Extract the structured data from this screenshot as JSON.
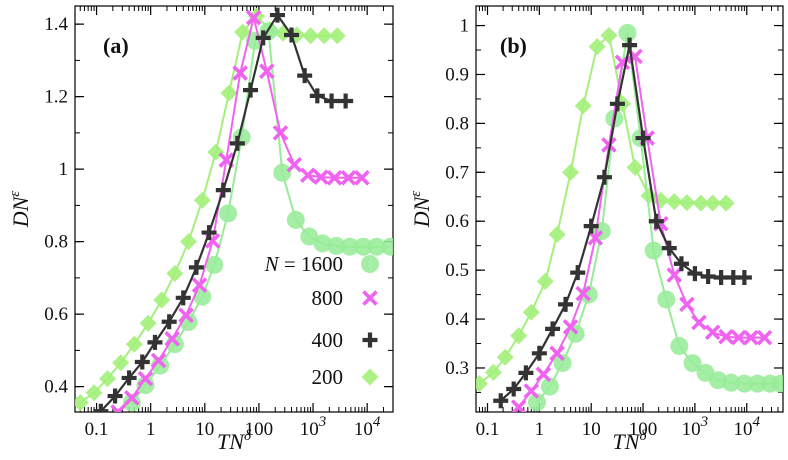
{
  "chart_data": [
    {
      "panel": "(a)",
      "type": "line",
      "xscale": "log",
      "xlabel": "TN",
      "xlabel_sup": "δ",
      "ylabel": "DN",
      "ylabel_sup": "ε",
      "xlim": [
        0.04,
        30000
      ],
      "ylim": [
        0.33,
        1.45
      ],
      "xticks": [
        {
          "value": 0.1,
          "label": "0.1"
        },
        {
          "value": 1,
          "label": "1"
        },
        {
          "value": 10,
          "label": "10"
        },
        {
          "value": 100,
          "label": "100"
        },
        {
          "value": 1000,
          "label": "10",
          "sup": "3"
        },
        {
          "value": 10000,
          "label": "10",
          "sup": "4"
        }
      ],
      "yticks": [
        {
          "value": 0.4,
          "label": "0.4"
        },
        {
          "value": 0.6,
          "label": "0.6"
        },
        {
          "value": 0.8,
          "label": "0.8"
        },
        {
          "value": 1.0,
          "label": "1"
        },
        {
          "value": 1.2,
          "label": "1.2"
        },
        {
          "value": 1.4,
          "label": "1.4"
        }
      ],
      "legend": {
        "placement": "bottom-right",
        "prefix": "N = "
      },
      "series": [
        {
          "name": "1600",
          "marker": "circle",
          "color": "#98ec98",
          "x": [
            0.45,
            0.8,
            1.5,
            2.8,
            5,
            9,
            15,
            27,
            48,
            85,
            150,
            270,
            480,
            850,
            1500,
            2700,
            4800,
            8500,
            15000,
            27000
          ],
          "y": [
            0.356,
            0.404,
            0.458,
            0.517,
            0.578,
            0.648,
            0.736,
            0.878,
            1.088,
            1.354,
            1.38,
            0.99,
            0.86,
            0.814,
            0.795,
            0.788,
            0.786,
            0.786,
            0.786,
            0.786
          ]
        },
        {
          "name": "800",
          "marker": "x",
          "color": "#f062f0",
          "x": [
            0.25,
            0.45,
            0.8,
            1.4,
            2.5,
            4.5,
            8,
            14,
            25,
            45,
            80,
            140,
            250,
            450,
            800,
            1400,
            2500,
            4500,
            8000
          ],
          "y": [
            0.33,
            0.369,
            0.422,
            0.472,
            0.532,
            0.597,
            0.68,
            0.802,
            1.025,
            1.265,
            1.418,
            1.27,
            1.1,
            1.012,
            0.983,
            0.978,
            0.976,
            0.976,
            0.976
          ]
        },
        {
          "name": "400",
          "marker": "plus",
          "color": "#333333",
          "x": [
            0.12,
            0.22,
            0.4,
            0.7,
            1.2,
            2.2,
            4,
            7,
            12,
            22,
            40,
            70,
            120,
            220,
            400,
            700,
            1200,
            2200,
            4000
          ],
          "y": [
            0.332,
            0.374,
            0.424,
            0.468,
            0.522,
            0.579,
            0.645,
            0.729,
            0.825,
            0.942,
            1.071,
            1.218,
            1.362,
            1.425,
            1.37,
            1.258,
            1.202,
            1.188,
            1.188
          ]
        },
        {
          "name": "200",
          "marker": "diamond",
          "color": "#a4f07c",
          "x": [
            0.05,
            0.09,
            0.16,
            0.28,
            0.5,
            0.9,
            1.6,
            2.8,
            5,
            9,
            16,
            28,
            50,
            90,
            160,
            280,
            500,
            900,
            1600,
            2800
          ],
          "y": [
            0.356,
            0.383,
            0.422,
            0.466,
            0.517,
            0.575,
            0.639,
            0.712,
            0.8,
            0.914,
            1.047,
            1.21,
            1.378,
            1.422,
            1.385,
            1.375,
            1.37,
            1.368,
            1.368,
            1.368
          ]
        }
      ]
    },
    {
      "panel": "(b)",
      "type": "line",
      "xscale": "log",
      "xlabel": "TN",
      "xlabel_sup": "δ",
      "ylabel": "DN",
      "ylabel_sup": "ε",
      "xlim": [
        0.06,
        50000
      ],
      "ylim": [
        0.21,
        1.04
      ],
      "xticks": [
        {
          "value": 0.1,
          "label": "0.1"
        },
        {
          "value": 1,
          "label": "1"
        },
        {
          "value": 10,
          "label": "10"
        },
        {
          "value": 100,
          "label": "100"
        },
        {
          "value": 1000,
          "label": "10",
          "sup": "3"
        },
        {
          "value": 10000,
          "label": "10",
          "sup": "4"
        }
      ],
      "yticks": [
        {
          "value": 0.3,
          "label": "0.3"
        },
        {
          "value": 0.4,
          "label": "0.4"
        },
        {
          "value": 0.5,
          "label": "0.5"
        },
        {
          "value": 0.6,
          "label": "0.6"
        },
        {
          "value": 0.7,
          "label": "0.7"
        },
        {
          "value": 0.8,
          "label": "0.8"
        },
        {
          "value": 0.9,
          "label": "0.9"
        },
        {
          "value": 1.0,
          "label": "1"
        }
      ],
      "series": [
        {
          "name": "1600",
          "marker": "circle",
          "color": "#98ec98",
          "x": [
            0.9,
            1.6,
            2.8,
            5,
            9,
            16,
            28,
            50,
            90,
            160,
            280,
            500,
            900,
            1600,
            2800,
            5000,
            9000,
            16000,
            28000,
            45000
          ],
          "y": [
            0.23,
            0.262,
            0.31,
            0.37,
            0.45,
            0.58,
            0.81,
            0.985,
            0.77,
            0.54,
            0.44,
            0.345,
            0.31,
            0.29,
            0.275,
            0.27,
            0.268,
            0.268,
            0.268,
            0.268
          ]
        },
        {
          "name": "800",
          "marker": "x",
          "color": "#f062f0",
          "x": [
            0.4,
            0.7,
            1.2,
            2.2,
            4,
            7,
            12,
            22,
            40,
            70,
            120,
            220,
            400,
            700,
            1200,
            2200,
            4000,
            7000,
            12000,
            22000
          ],
          "y": [
            0.22,
            0.253,
            0.287,
            0.33,
            0.384,
            0.452,
            0.566,
            0.756,
            0.925,
            0.937,
            0.77,
            0.595,
            0.49,
            0.43,
            0.393,
            0.373,
            0.364,
            0.362,
            0.362,
            0.362
          ]
        },
        {
          "name": "400",
          "marker": "plus",
          "color": "#333333",
          "x": [
            0.18,
            0.32,
            0.55,
            1,
            1.8,
            3.2,
            5.5,
            10,
            18,
            32,
            55,
            100,
            180,
            320,
            550,
            1000,
            1800,
            3200,
            5500,
            9000
          ],
          "y": [
            0.233,
            0.257,
            0.29,
            0.33,
            0.38,
            0.43,
            0.495,
            0.59,
            0.69,
            0.84,
            0.96,
            0.77,
            0.6,
            0.545,
            0.513,
            0.493,
            0.487,
            0.485,
            0.485,
            0.485
          ]
        },
        {
          "name": "200",
          "marker": "diamond",
          "color": "#a4f07c",
          "x": [
            0.07,
            0.13,
            0.22,
            0.4,
            0.7,
            1.3,
            2.2,
            4,
            7,
            13,
            22,
            40,
            70,
            130,
            220,
            400,
            700,
            1300,
            2200,
            4000
          ],
          "y": [
            0.268,
            0.291,
            0.322,
            0.366,
            0.414,
            0.477,
            0.573,
            0.7,
            0.836,
            0.957,
            0.98,
            0.84,
            0.71,
            0.652,
            0.643,
            0.64,
            0.638,
            0.637,
            0.637,
            0.637
          ]
        }
      ]
    }
  ]
}
